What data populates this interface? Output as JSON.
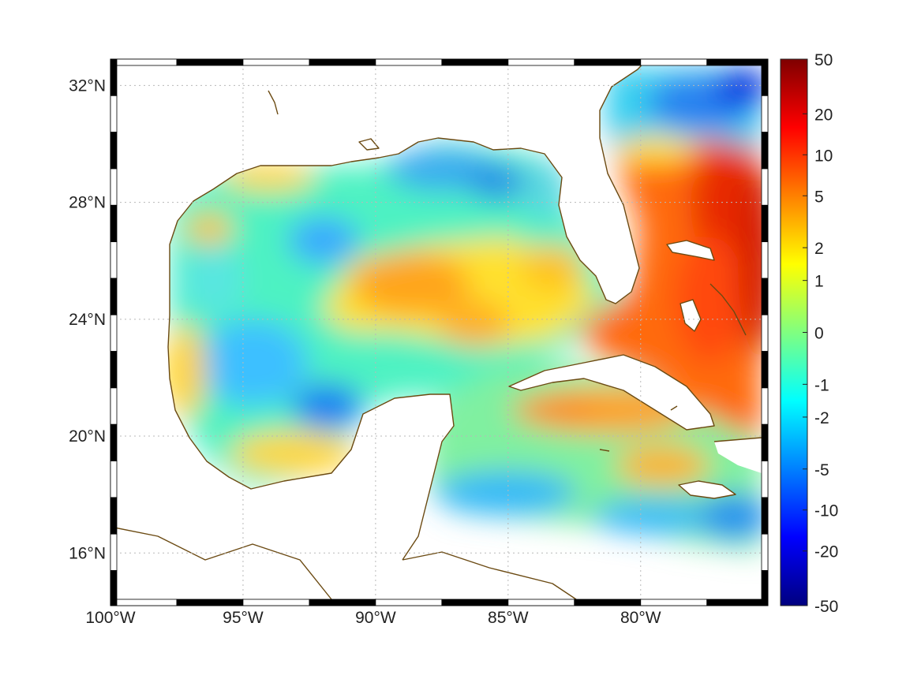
{
  "map": {
    "lon_range": [
      -100,
      -75.2
    ],
    "lat_range": [
      14.2,
      32.9
    ],
    "lon_ticks": [
      {
        "value": -100,
        "label": "100°W"
      },
      {
        "value": -95,
        "label": "95°W"
      },
      {
        "value": -90,
        "label": "90°W"
      },
      {
        "value": -85,
        "label": "85°W"
      },
      {
        "value": -80,
        "label": "80°W"
      }
    ],
    "lat_ticks": [
      {
        "value": 32,
        "label": "32°N"
      },
      {
        "value": 28,
        "label": "28°N"
      },
      {
        "value": 24,
        "label": "24°N"
      },
      {
        "value": 20,
        "label": "20°N"
      },
      {
        "value": 16,
        "label": "16°N"
      }
    ],
    "grid": "dotted",
    "frame": "black-white alternating",
    "coastline_color": "#6b4a12",
    "land_color": "#ffffff",
    "colormap": "jet",
    "field_regions": [
      {
        "region": "Florida Straits / Bahamas / Atlantic east",
        "level": "10 to 20"
      },
      {
        "region": "Atlantic north of 30°N",
        "level": "-5 to -10"
      },
      {
        "region": "central Gulf loop",
        "level": "2 to 5"
      },
      {
        "region": "western Gulf / Bay of Campeche",
        "level": "-1 to -5"
      },
      {
        "region": "northern Gulf shelf",
        "level": "-2 to -5"
      },
      {
        "region": "Caribbean south of 18°N",
        "level": "-2 to -5"
      }
    ]
  },
  "colorbar": {
    "labels": [
      "50",
      "20",
      "10",
      "5",
      "2",
      "1",
      "0",
      "-1",
      "-2",
      "-5",
      "-10",
      "-20",
      "-50"
    ],
    "label_fractions": [
      0.0,
      0.1,
      0.175,
      0.25,
      0.345,
      0.405,
      0.5,
      0.595,
      0.655,
      0.75,
      0.825,
      0.9,
      1.0
    ],
    "colors": [
      "#7f0000",
      "#ff0000",
      "#ff8000",
      "#ffff00",
      "#80ff80",
      "#00ffff",
      "#0080ff",
      "#0000ff",
      "#00007f"
    ]
  }
}
